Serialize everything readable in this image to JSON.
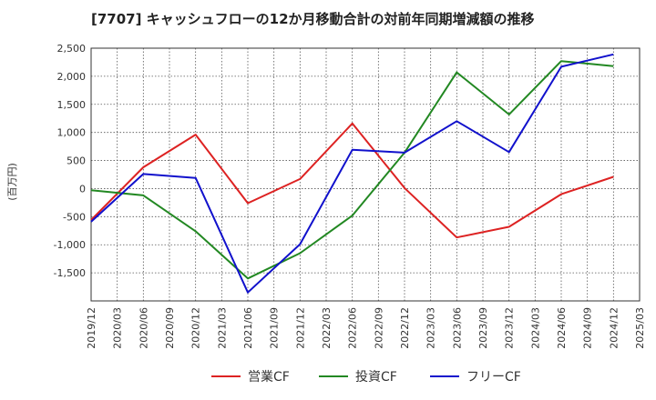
{
  "chart_data": {
    "type": "line",
    "title": "[7707]  キャッシュフローの12か月移動合計の対前年同期増減額の推移",
    "xlabel": "",
    "ylabel": "(百万円)",
    "ylim": [
      -2000,
      2500
    ],
    "yticks": [
      2500,
      2000,
      1500,
      1000,
      500,
      0,
      -500,
      -1000,
      -1500
    ],
    "ytick_labels": [
      "2,500",
      "2,000",
      "1,500",
      "1,000",
      "500",
      "0",
      "-500",
      "-1,000",
      "-1,500"
    ],
    "categories": [
      "2019/12",
      "2020/03",
      "2020/06",
      "2020/09",
      "2020/12",
      "2021/03",
      "2021/06",
      "2021/09",
      "2021/12",
      "2022/03",
      "2022/06",
      "2022/09",
      "2022/12",
      "2023/03",
      "2023/06",
      "2023/09",
      "2023/12",
      "2024/03",
      "2024/06",
      "2024/09",
      "2024/12",
      "2025/03"
    ],
    "grid": true,
    "legend_position": "bottom",
    "series": [
      {
        "name": "営業CF",
        "color": "#dd2222",
        "points": [
          [
            "2019/12",
            -560
          ],
          [
            "2020/06",
            380
          ],
          [
            "2020/12",
            960
          ],
          [
            "2021/06",
            -260
          ],
          [
            "2021/12",
            170
          ],
          [
            "2022/06",
            1160
          ],
          [
            "2022/12",
            10
          ],
          [
            "2023/06",
            -870
          ],
          [
            "2023/12",
            -680
          ],
          [
            "2024/06",
            -100
          ],
          [
            "2024/12",
            210
          ]
        ]
      },
      {
        "name": "投資CF",
        "color": "#228822",
        "points": [
          [
            "2019/12",
            -30
          ],
          [
            "2020/06",
            -120
          ],
          [
            "2020/12",
            -760
          ],
          [
            "2021/06",
            -1600
          ],
          [
            "2021/12",
            -1150
          ],
          [
            "2022/06",
            -480
          ],
          [
            "2022/12",
            640
          ],
          [
            "2023/06",
            2070
          ],
          [
            "2023/12",
            1320
          ],
          [
            "2024/06",
            2270
          ],
          [
            "2024/12",
            2180
          ]
        ]
      },
      {
        "name": "フリーCF",
        "color": "#1111cc",
        "points": [
          [
            "2019/12",
            -590
          ],
          [
            "2020/06",
            260
          ],
          [
            "2020/12",
            190
          ],
          [
            "2021/06",
            -1850
          ],
          [
            "2021/12",
            -990
          ],
          [
            "2022/06",
            690
          ],
          [
            "2022/12",
            640
          ],
          [
            "2023/06",
            1200
          ],
          [
            "2023/12",
            650
          ],
          [
            "2024/06",
            2170
          ],
          [
            "2024/12",
            2390
          ]
        ]
      }
    ]
  }
}
